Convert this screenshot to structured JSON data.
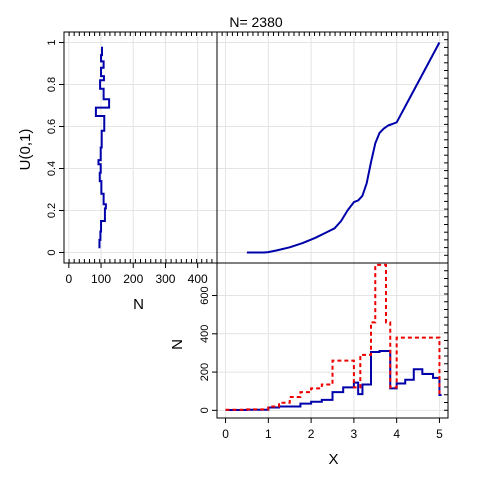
{
  "title": "N= 2380",
  "colors": {
    "primary": "#0000aa",
    "secondary": "#ee0000",
    "grid": "#e4e4e4",
    "axis": "#000000"
  },
  "chart_data": [
    {
      "panel": "cdf",
      "type": "line",
      "xlim": [
        -0.2,
        5.2
      ],
      "ylim": [
        -0.05,
        1.05
      ],
      "grid": true,
      "series": [
        {
          "color": "#0000aa",
          "x": [
            0.5,
            0.7,
            0.9,
            1.0,
            1.2,
            1.5,
            1.8,
            2.1,
            2.4,
            2.55,
            2.7,
            2.85,
            3.0,
            3.1,
            3.2,
            3.3,
            3.4,
            3.5,
            3.6,
            3.7,
            3.8,
            3.9,
            4.0,
            4.25,
            4.5,
            4.75,
            5.0
          ],
          "y": [
            0.0,
            0.0,
            0.0,
            0.002,
            0.01,
            0.025,
            0.045,
            0.07,
            0.1,
            0.115,
            0.15,
            0.2,
            0.24,
            0.248,
            0.27,
            0.33,
            0.43,
            0.52,
            0.57,
            0.59,
            0.605,
            0.612,
            0.62,
            0.715,
            0.81,
            0.905,
            1.0
          ]
        }
      ]
    },
    {
      "panel": "marginal-y",
      "type": "line",
      "xlim": [
        -15,
        460
      ],
      "ylim": [
        -0.05,
        1.05
      ],
      "xticks": [
        0,
        100,
        200,
        300,
        400
      ],
      "yticks": [
        0,
        0.2,
        0.4,
        0.6,
        0.8,
        1
      ],
      "xlabel": "N",
      "ylabel": "U(0,1)",
      "grid": true,
      "series": [
        {
          "color": "#0000aa",
          "steps": [
            [
              0.02,
              0.06,
              95
            ],
            [
              0.06,
              0.1,
              98
            ],
            [
              0.1,
              0.15,
              100
            ],
            [
              0.15,
              0.21,
              112
            ],
            [
              0.21,
              0.23,
              115
            ],
            [
              0.23,
              0.28,
              108
            ],
            [
              0.28,
              0.34,
              101
            ],
            [
              0.34,
              0.38,
              96
            ],
            [
              0.38,
              0.42,
              99
            ],
            [
              0.42,
              0.44,
              92
            ],
            [
              0.44,
              0.5,
              99
            ],
            [
              0.5,
              0.58,
              102
            ],
            [
              0.58,
              0.65,
              110
            ],
            [
              0.65,
              0.69,
              84
            ],
            [
              0.69,
              0.73,
              125
            ],
            [
              0.73,
              0.78,
              108
            ],
            [
              0.78,
              0.82,
              97
            ],
            [
              0.82,
              0.84,
              109
            ],
            [
              0.84,
              0.88,
              100
            ],
            [
              0.88,
              0.91,
              108
            ],
            [
              0.91,
              0.94,
              100
            ],
            [
              0.94,
              0.98,
              103
            ]
          ]
        }
      ]
    },
    {
      "panel": "marginal-x",
      "type": "line",
      "xlim": [
        -0.2,
        5.2
      ],
      "ylim": [
        -40,
        770
      ],
      "xticks": [
        0,
        1,
        2,
        3,
        4,
        5
      ],
      "yticks": [
        0,
        200,
        400,
        600
      ],
      "xlabel": "X",
      "ylabel": "N",
      "grid": true,
      "series": [
        {
          "color": "#0000aa",
          "style": "solid",
          "steps": [
            [
              0.0,
              0.5,
              2
            ],
            [
              0.5,
              1.0,
              3
            ],
            [
              1.0,
              1.25,
              15
            ],
            [
              1.25,
              1.75,
              20
            ],
            [
              1.75,
              2.0,
              35
            ],
            [
              2.0,
              2.25,
              45
            ],
            [
              2.25,
              2.5,
              55
            ],
            [
              2.5,
              2.75,
              95
            ],
            [
              2.75,
              3.0,
              120
            ],
            [
              3.0,
              3.1,
              145
            ],
            [
              3.1,
              3.2,
              85
            ],
            [
              3.2,
              3.4,
              135
            ],
            [
              3.4,
              3.6,
              305
            ],
            [
              3.6,
              3.85,
              310
            ],
            [
              3.85,
              4.0,
              115
            ],
            [
              4.0,
              4.2,
              140
            ],
            [
              4.2,
              4.4,
              160
            ],
            [
              4.4,
              4.6,
              215
            ],
            [
              4.6,
              4.85,
              190
            ],
            [
              4.85,
              5.0,
              170
            ],
            [
              5.0,
              5.05,
              80
            ]
          ]
        },
        {
          "color": "#ee0000",
          "style": "dotted",
          "steps": [
            [
              0.0,
              0.5,
              3
            ],
            [
              0.5,
              1.0,
              5
            ],
            [
              1.0,
              1.25,
              20
            ],
            [
              1.25,
              1.5,
              40
            ],
            [
              1.5,
              1.75,
              70
            ],
            [
              1.75,
              2.0,
              95
            ],
            [
              2.0,
              2.25,
              115
            ],
            [
              2.25,
              2.5,
              135
            ],
            [
              2.5,
              3.0,
              260
            ],
            [
              3.0,
              3.15,
              120
            ],
            [
              3.15,
              3.4,
              290
            ],
            [
              3.4,
              3.5,
              460
            ],
            [
              3.5,
              3.75,
              760
            ],
            [
              3.75,
              3.85,
              460
            ],
            [
              3.85,
              4.0,
              120
            ],
            [
              4.0,
              5.0,
              380
            ],
            [
              5.0,
              5.05,
              90
            ]
          ]
        }
      ]
    }
  ]
}
